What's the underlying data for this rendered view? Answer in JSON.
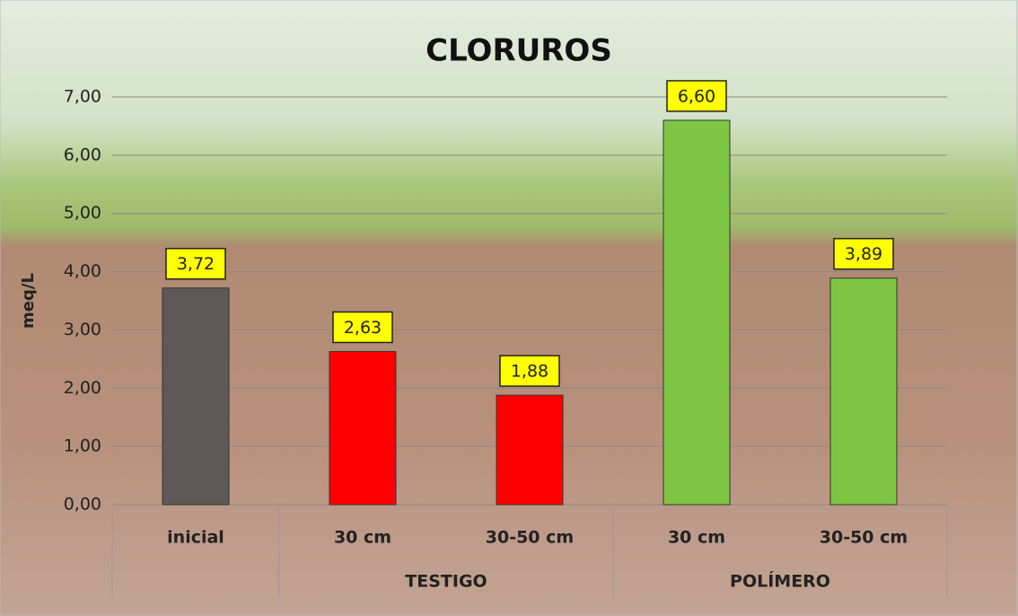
{
  "chart_data": {
    "type": "bar",
    "title": "CLORUROS",
    "y_label": "meq/L",
    "categories": [
      "inicial",
      "30 cm",
      "30-50 cm",
      "30 cm",
      "30-50 cm"
    ],
    "groups": [
      "TESTIGO",
      "POLÍMERO"
    ],
    "values": [
      3.72,
      2.63,
      1.88,
      6.6,
      3.89
    ],
    "value_labels": [
      "3,72",
      "2,63",
      "1,88",
      "6,60",
      "3,89"
    ],
    "colors": [
      "#5e5957",
      "#ff0000",
      "#ff0000",
      "#7ec544",
      "#7ec544"
    ],
    "ylim": [
      0,
      7
    ],
    "yticks": [
      {
        "value": 0,
        "label": "0,00"
      },
      {
        "value": 1,
        "label": "1,00"
      },
      {
        "value": 2,
        "label": "2,00"
      },
      {
        "value": 3,
        "label": "3,00"
      },
      {
        "value": 4,
        "label": "4,00"
      },
      {
        "value": 5,
        "label": "5,00"
      },
      {
        "value": 6,
        "label": "6,00"
      },
      {
        "value": 7,
        "label": "7,00"
      }
    ],
    "grid": true
  }
}
